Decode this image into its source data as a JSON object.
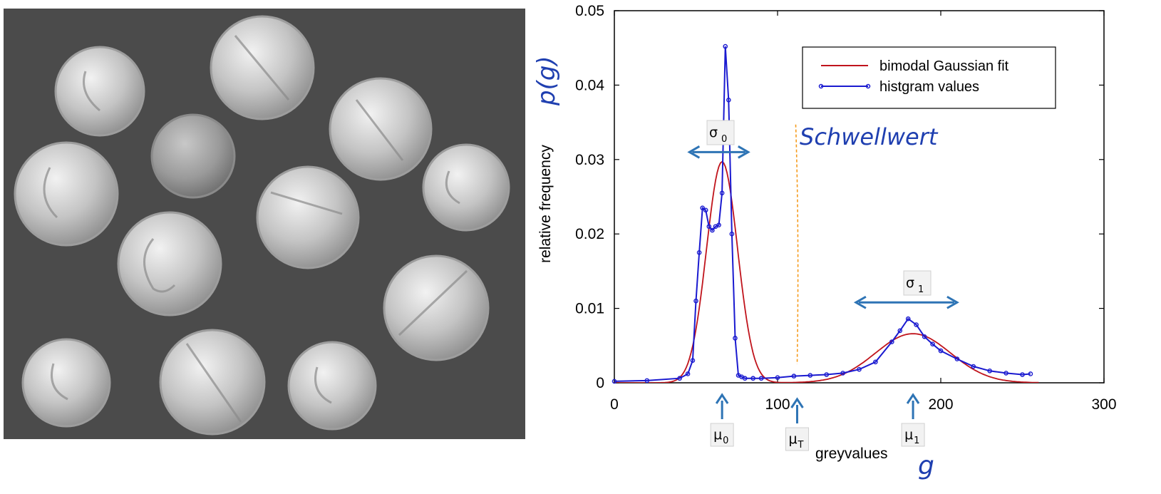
{
  "chart_data": {
    "type": "line",
    "xlabel": "greyvalues",
    "ylabel": "relative frequency",
    "xlim": [
      0,
      300
    ],
    "ylim": [
      0,
      0.05
    ],
    "x_ticks": [
      0,
      100,
      200,
      300
    ],
    "y_ticks": [
      0,
      0.01,
      0.02,
      0.03,
      0.04,
      0.05
    ],
    "x_tick_labels": [
      "0",
      "100",
      "200",
      "300"
    ],
    "y_tick_labels": [
      "0",
      "0.01",
      "0.02",
      "0.03",
      "0.04",
      "0.05"
    ],
    "legend_position": "top-right",
    "series": [
      {
        "name": "bimodal Gaussian fit",
        "color": "#c0141c",
        "gaussian_components": [
          {
            "mu": 66,
            "sigma": 9.5,
            "peak": 0.0297
          },
          {
            "mu": 183,
            "sigma": 23,
            "peak": 0.0066
          }
        ]
      },
      {
        "name": "histgram values",
        "color": "#1a1ad0",
        "x": [
          0,
          20,
          40,
          45,
          48,
          50,
          52,
          54,
          56,
          58,
          60,
          62,
          64,
          66,
          68,
          70,
          72,
          74,
          76,
          78,
          80,
          85,
          90,
          100,
          110,
          120,
          130,
          140,
          150,
          160,
          170,
          175,
          180,
          185,
          190,
          195,
          200,
          210,
          220,
          230,
          240,
          250,
          255
        ],
        "y": [
          0.0002,
          0.0003,
          0.0006,
          0.0012,
          0.003,
          0.011,
          0.0175,
          0.0235,
          0.0232,
          0.021,
          0.0205,
          0.021,
          0.0212,
          0.0255,
          0.0452,
          0.038,
          0.02,
          0.006,
          0.001,
          0.0008,
          0.0006,
          0.0006,
          0.0006,
          0.0007,
          0.0009,
          0.001,
          0.0011,
          0.0013,
          0.0018,
          0.0028,
          0.0055,
          0.007,
          0.0086,
          0.0078,
          0.0062,
          0.0052,
          0.0043,
          0.0032,
          0.0022,
          0.0016,
          0.0013,
          0.0011,
          0.0012
        ]
      }
    ],
    "annotations": {
      "threshold_label": "Schwellwert",
      "threshold_x": 112,
      "threshold_color": "#f59a1b",
      "arrow_color": "#2e74b5",
      "mu0": {
        "main": "μ",
        "sub": "0",
        "x": 66
      },
      "muT": {
        "main": "μ",
        "sub": "T",
        "x": 112
      },
      "mu1": {
        "main": "μ",
        "sub": "1",
        "x": 183
      },
      "sigma0": {
        "main": "σ",
        "sub": "0",
        "x_from": 46,
        "x_to": 82,
        "y": 0.031
      },
      "sigma1": {
        "main": "σ",
        "sub": "1",
        "x_from": 148,
        "x_to": 210,
        "y": 0.0108
      },
      "p_of_g": "p(g)",
      "g_label": "g"
    }
  }
}
